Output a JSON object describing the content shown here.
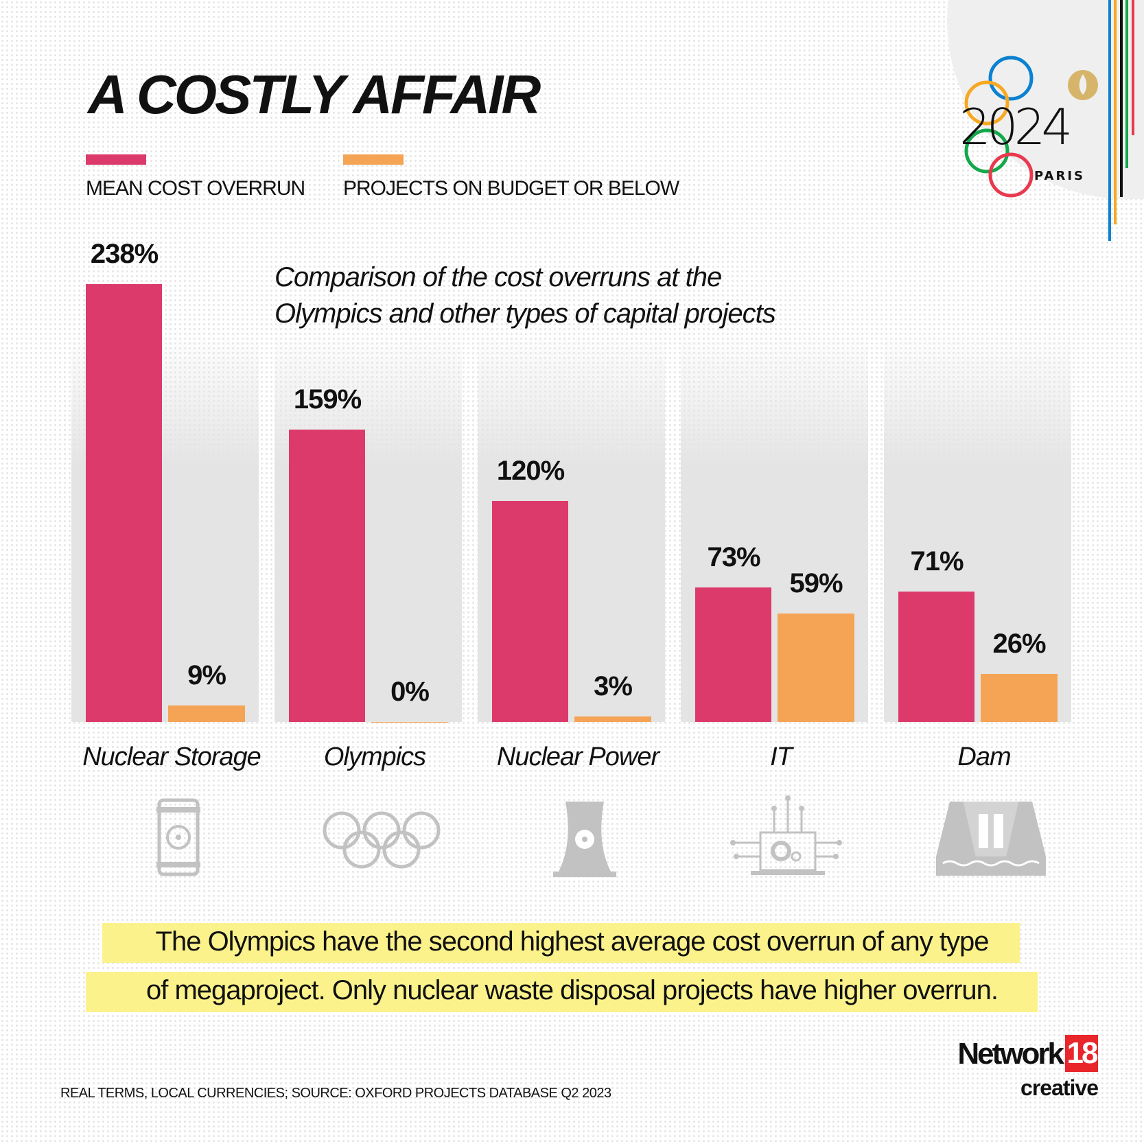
{
  "title": "A COSTLY AFFAIR",
  "subtitle_lines": [
    "Comparison of the cost overruns at the",
    "Olympics and other types of capital projects"
  ],
  "logo": {
    "text": "2024",
    "sub": "PARIS",
    "ring_colors": [
      "#0a81d1",
      "#f7a823",
      "#111111",
      "#13a84a",
      "#e8394f"
    ]
  },
  "colors": {
    "overrun": "#dc3a6b",
    "budget": "#f5a455",
    "panel": "#e4e4e4",
    "highlight": "#fbf28c"
  },
  "chart_data": {
    "type": "bar",
    "categories": [
      "Nuclear Storage",
      "Olympics",
      "Nuclear Power",
      "IT",
      "Dam"
    ],
    "series": [
      {
        "name": "MEAN COST OVERRUN",
        "values": [
          238,
          159,
          120,
          73,
          71
        ],
        "labels": [
          "238%",
          "159%",
          "120%",
          "73%",
          "71%"
        ]
      },
      {
        "name": "PROJECTS ON BUDGET OR BELOW",
        "values": [
          9,
          0,
          3,
          59,
          26
        ],
        "labels": [
          "9%",
          "0%",
          "3%",
          "59%",
          "26%"
        ]
      }
    ],
    "unit": "%",
    "ylim": [
      0,
      240
    ],
    "grid": false,
    "legend": "top-left"
  },
  "icons": [
    "nuclear-waste-barrel-icon",
    "olympic-rings-icon",
    "cooling-tower-icon",
    "it-laptop-gear-icon",
    "dam-icon"
  ],
  "note_lines": [
    "The Olympics have the second highest average cost overrun of any type",
    "of megaproject. Only nuclear waste disposal projects have higher overrun."
  ],
  "footer": "REAL TERMS, LOCAL CURRENCIES;   SOURCE: OXFORD PROJECTS DATABASE Q2 2023",
  "brand": {
    "name": "Network",
    "number": "18",
    "tag": "creative"
  }
}
